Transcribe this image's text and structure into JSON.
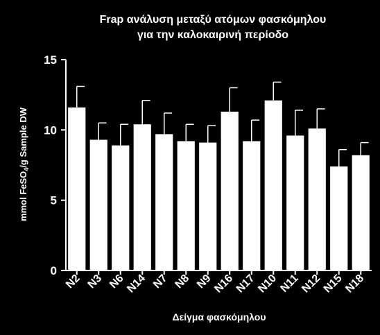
{
  "chart_data": {
    "type": "bar",
    "title_line1": "Frap ανάλυση μεταξύ ατόμων φασκόμηλου",
    "title_line2": "για την καλοκαιρινή περίοδο",
    "xlabel": "Δείγμα φασκόμηλου",
    "ylabel": "mmol FeSO4/g Sample DW",
    "ylabel_parts": {
      "pre": "mmol FeSO",
      "sub": "4",
      "post": "/g Sample DW"
    },
    "ylim": [
      0,
      15
    ],
    "yticks": [
      "0",
      "5",
      "10",
      "15"
    ],
    "categories": [
      "N2",
      "N3",
      "N6",
      "N14",
      "N7",
      "N8",
      "N9",
      "N16",
      "N17",
      "N10",
      "N11",
      "N12",
      "N15",
      "N18"
    ],
    "values": [
      11.6,
      9.3,
      8.9,
      10.4,
      9.7,
      9.2,
      9.1,
      11.3,
      9.2,
      12.1,
      9.6,
      10.1,
      7.4,
      8.2
    ],
    "errors": [
      1.5,
      1.2,
      1.5,
      1.7,
      1.5,
      1.2,
      1.2,
      1.7,
      1.5,
      1.3,
      1.8,
      1.4,
      1.2,
      0.9
    ],
    "colors": {
      "background": "#000000",
      "bar": "#ffffff",
      "axis": "#ffffff",
      "text": "#ffffff"
    }
  }
}
